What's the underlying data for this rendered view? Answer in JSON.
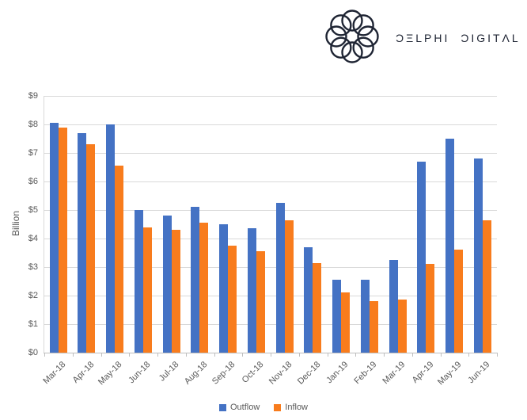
{
  "brand": {
    "name": "Delphi Digital",
    "wordmark": "ƆΞLPHI ƆIGITΛL"
  },
  "chart_data": {
    "type": "bar",
    "title": "",
    "xlabel": "",
    "ylabel": "Billion",
    "ylim": [
      0,
      9
    ],
    "ytick_step": 1,
    "ytick_prefix": "$",
    "grid": true,
    "legend_position": "bottom",
    "categories": [
      "Mar-18",
      "Apr-18",
      "May-18",
      "Jun-18",
      "Jul-18",
      "Aug-18",
      "Sep-18",
      "Oct-18",
      "Nov-18",
      "Dec-18",
      "Jan-19",
      "Feb-19",
      "Mar-19",
      "Apr-19",
      "May-19",
      "Jun-19"
    ],
    "series": [
      {
        "name": "Outflow",
        "color": "#4472c4",
        "values": [
          8.05,
          7.7,
          8.0,
          5.0,
          4.8,
          5.1,
          4.5,
          4.35,
          5.25,
          3.7,
          2.55,
          2.55,
          3.25,
          6.7,
          7.5,
          6.8
        ]
      },
      {
        "name": "Inflow",
        "color": "#f87c1d",
        "values": [
          7.9,
          7.3,
          6.55,
          4.4,
          4.3,
          4.55,
          3.75,
          3.55,
          4.65,
          3.15,
          2.1,
          1.8,
          1.85,
          3.1,
          3.6,
          4.65
        ]
      }
    ]
  },
  "colors": {
    "gridline": "#d9d9d9",
    "axis_line": "#bfbfbf",
    "axis_text": "#595959",
    "logo": "#1e2433"
  }
}
